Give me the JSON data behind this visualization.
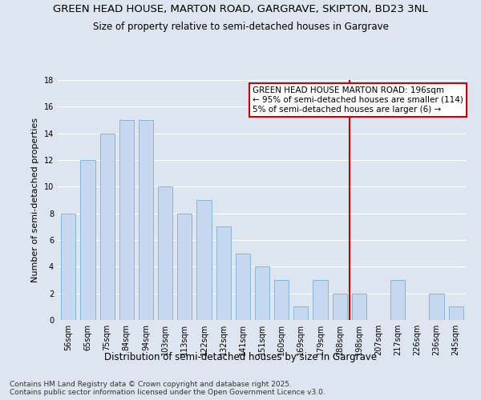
{
  "title": "GREEN HEAD HOUSE, MARTON ROAD, GARGRAVE, SKIPTON, BD23 3NL",
  "subtitle": "Size of property relative to semi-detached houses in Gargrave",
  "xlabel": "Distribution of semi-detached houses by size in Gargrave",
  "ylabel": "Number of semi-detached properties",
  "categories": [
    "56sqm",
    "65sqm",
    "75sqm",
    "84sqm",
    "94sqm",
    "103sqm",
    "113sqm",
    "122sqm",
    "132sqm",
    "141sqm",
    "151sqm",
    "160sqm",
    "169sqm",
    "179sqm",
    "188sqm",
    "198sqm",
    "207sqm",
    "217sqm",
    "226sqm",
    "236sqm",
    "245sqm"
  ],
  "values": [
    8,
    12,
    14,
    15,
    15,
    10,
    8,
    9,
    7,
    5,
    4,
    3,
    1,
    3,
    2,
    2,
    0,
    3,
    0,
    2,
    1
  ],
  "bar_color": "#c5d8f0",
  "bar_edge_color": "#7aadd4",
  "vline_x_index": 15,
  "vline_color": "#cc0000",
  "annotation_text": "GREEN HEAD HOUSE MARTON ROAD: 196sqm\n← 95% of semi-detached houses are smaller (114)\n5% of semi-detached houses are larger (6) →",
  "annotation_box_color": "#cc0000",
  "ylim": [
    0,
    18
  ],
  "yticks": [
    0,
    2,
    4,
    6,
    8,
    10,
    12,
    14,
    16,
    18
  ],
  "background_color": "#dde5f0",
  "plot_background_color": "#dde5f0",
  "footer": "Contains HM Land Registry data © Crown copyright and database right 2025.\nContains public sector information licensed under the Open Government Licence v3.0.",
  "title_fontsize": 9.5,
  "subtitle_fontsize": 8.5,
  "xlabel_fontsize": 8.5,
  "ylabel_fontsize": 8,
  "tick_fontsize": 7,
  "annotation_fontsize": 7.5,
  "footer_fontsize": 6.5
}
